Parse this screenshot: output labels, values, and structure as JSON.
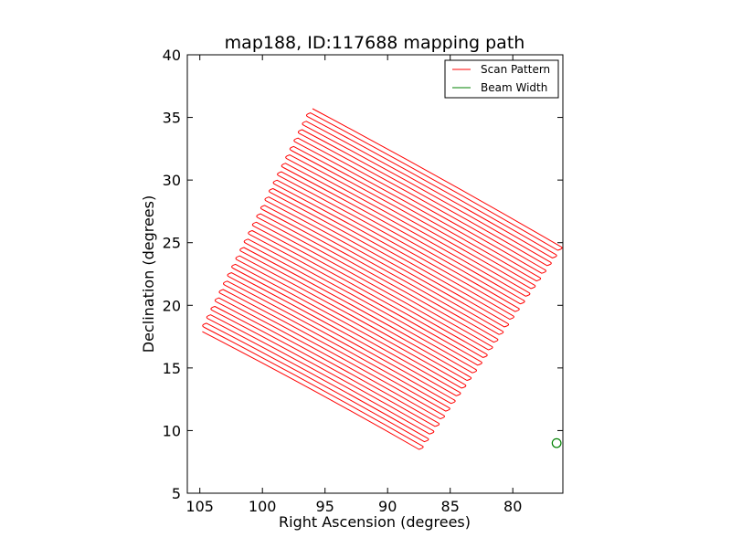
{
  "chart_data": {
    "type": "line",
    "title": "map188, ID:117688 mapping path",
    "xlabel": "Right Ascension (degrees)",
    "ylabel": "Declination (degrees)",
    "xlim": [
      106,
      76
    ],
    "ylim": [
      5,
      40
    ],
    "x_inverted": true,
    "x_ticks": [
      105,
      100,
      95,
      90,
      85,
      80
    ],
    "x_tick_labels": [
      "105",
      "100",
      "95",
      "90",
      "85",
      "80"
    ],
    "y_ticks": [
      5,
      10,
      15,
      20,
      25,
      30,
      35,
      40
    ],
    "y_tick_labels": [
      "5",
      "10",
      "15",
      "20",
      "25",
      "30",
      "35",
      "40"
    ],
    "grid": false,
    "legend": {
      "position": "top-right",
      "entries": [
        {
          "label": "Scan Pattern",
          "color": "#ff0000"
        },
        {
          "label": "Beam Width",
          "color": "#008000"
        }
      ]
    },
    "series": [
      {
        "name": "Scan Pattern",
        "color": "#ff0000",
        "pattern": "raster",
        "corners": {
          "first_start": [
            104.8,
            17.9
          ],
          "first_end": [
            87.5,
            8.5
          ],
          "last_start": [
            96,
            35.7
          ],
          "last_end": [
            76.2,
            24.7
          ]
        },
        "num_scan_lines": 54
      },
      {
        "name": "Beam Width",
        "color": "#008000",
        "marker": "circle",
        "center": [
          76.5,
          9
        ],
        "radius_deg": 0.35
      }
    ]
  }
}
